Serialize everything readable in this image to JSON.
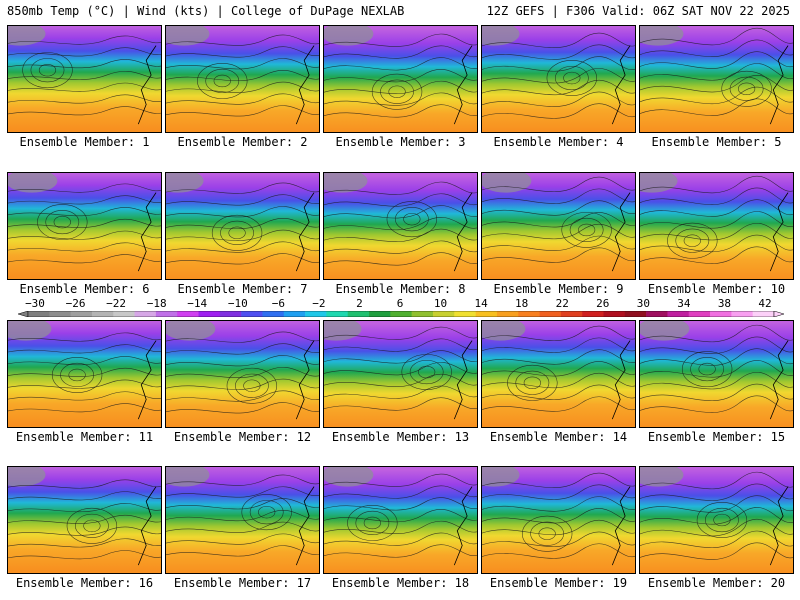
{
  "header": {
    "title_left": "850mb Temp (°C) | Wind (kts) | College of DuPage NEXLAB",
    "title_right": "12Z GEFS | F306 Valid: 06Z SAT NOV 22 2025"
  },
  "colorbar": {
    "ticks": [
      "−30",
      "−26",
      "−22",
      "−18",
      "−14",
      "−10",
      "−6",
      "−2",
      "2",
      "6",
      "10",
      "14",
      "18",
      "22",
      "26",
      "30",
      "34",
      "38",
      "42"
    ],
    "colors": [
      "#7f7f7f",
      "#8e8e8e",
      "#a0a0a0",
      "#b4b4b4",
      "#c8c8c8",
      "#d6a7e6",
      "#c070e8",
      "#d040f0",
      "#a020f0",
      "#8030e0",
      "#5050f0",
      "#3070f0",
      "#20a0f0",
      "#20c8e8",
      "#20d8b0",
      "#20c070",
      "#20a040",
      "#50b030",
      "#90c030",
      "#c8d030",
      "#f0e030",
      "#f8c020",
      "#f8a020",
      "#f88020",
      "#f06020",
      "#e04020",
      "#d02020",
      "#b01020",
      "#901020",
      "#a01060",
      "#c020a0",
      "#e040c0",
      "#f070e0",
      "#f8a0f0",
      "#fcd0f8"
    ]
  },
  "members": [
    {
      "label": "Ensemble Member: 1"
    },
    {
      "label": "Ensemble Member: 2"
    },
    {
      "label": "Ensemble Member: 3"
    },
    {
      "label": "Ensemble Member: 4"
    },
    {
      "label": "Ensemble Member: 5"
    },
    {
      "label": "Ensemble Member: 6"
    },
    {
      "label": "Ensemble Member: 7"
    },
    {
      "label": "Ensemble Member: 8"
    },
    {
      "label": "Ensemble Member: 9"
    },
    {
      "label": "Ensemble Member: 10"
    },
    {
      "label": "Ensemble Member: 11"
    },
    {
      "label": "Ensemble Member: 12"
    },
    {
      "label": "Ensemble Member: 13"
    },
    {
      "label": "Ensemble Member: 14"
    },
    {
      "label": "Ensemble Member: 15"
    },
    {
      "label": "Ensemble Member: 16"
    },
    {
      "label": "Ensemble Member: 17"
    },
    {
      "label": "Ensemble Member: 18"
    },
    {
      "label": "Ensemble Member: 19"
    },
    {
      "label": "Ensemble Member: 20"
    }
  ]
}
